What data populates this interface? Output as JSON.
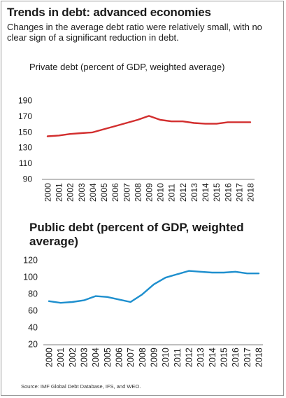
{
  "header": {
    "title": "Trends in debt: advanced economies",
    "subtitle": "Changes in the average debt ratio were relatively small, with no clear sign of a significant reduction in debt."
  },
  "chart_data": [
    {
      "type": "line",
      "title": "Private debt (percent of GDP, weighted average)",
      "x": [
        "2000",
        "2001",
        "2002",
        "2003",
        "2004",
        "2005",
        "2006",
        "2007",
        "2008",
        "2009",
        "2010",
        "2011",
        "2012",
        "2013",
        "2014",
        "2015",
        "2016",
        "2017",
        "2018"
      ],
      "values": [
        144,
        145,
        147,
        148,
        149,
        153,
        157,
        161,
        165,
        170,
        165,
        163,
        163,
        161,
        160,
        160,
        162,
        162,
        162
      ],
      "yticks": [
        90,
        110,
        130,
        150,
        170,
        190
      ],
      "ylim": [
        90,
        190
      ],
      "color": "#d22e2e"
    },
    {
      "type": "line",
      "title": "Public debt (percent of GDP, weighted average)",
      "x": [
        "2000",
        "2001",
        "2002",
        "2003",
        "2004",
        "2005",
        "2006",
        "2007",
        "2008",
        "2009",
        "2010",
        "2011",
        "2012",
        "2013",
        "2014",
        "2015",
        "2016",
        "2017",
        "2018"
      ],
      "values": [
        71,
        69,
        70,
        72,
        77,
        76,
        73,
        70,
        79,
        91,
        99,
        103,
        107,
        106,
        105,
        105,
        106,
        104,
        104
      ],
      "yticks": [
        20,
        40,
        60,
        80,
        100,
        120
      ],
      "ylim": [
        20,
        120
      ],
      "color": "#1e8fce"
    }
  ],
  "footer": {
    "source": "Source: IMF Global Debt Database, IFS, and WEO."
  }
}
